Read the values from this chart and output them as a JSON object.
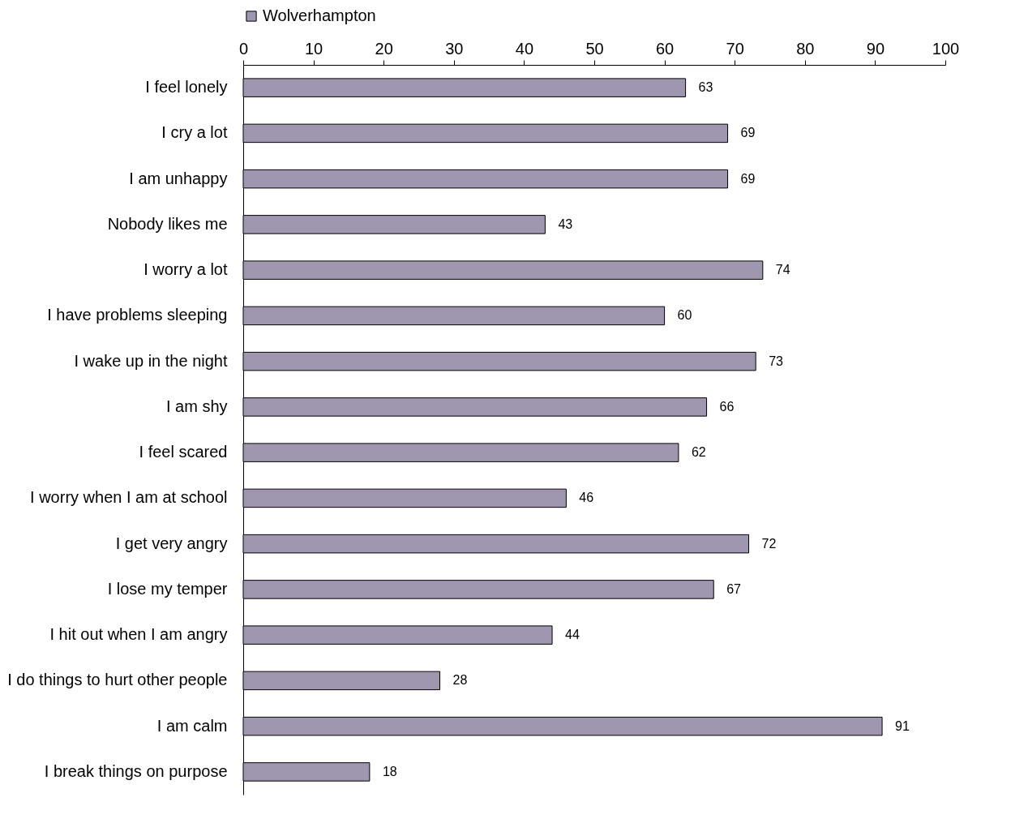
{
  "chart_data": {
    "type": "bar",
    "orientation": "horizontal",
    "categories": [
      "I feel lonely",
      "I cry a lot",
      "I am unhappy",
      "Nobody likes me",
      "I worry a lot",
      "I have problems sleeping",
      "I wake up in the night",
      "I am shy",
      "I feel scared",
      "I worry when I am at school",
      "I get very angry",
      "I lose my temper",
      "I hit out when I am angry",
      "I do things to hurt other people",
      "I am calm",
      "I break things on purpose"
    ],
    "series": [
      {
        "name": "Wolverhampton",
        "color": "#9f97b0",
        "values": [
          63,
          69,
          69,
          43,
          74,
          60,
          73,
          66,
          62,
          46,
          72,
          67,
          44,
          28,
          91,
          18
        ]
      }
    ],
    "xlim": [
      0,
      100
    ],
    "xticks": [
      0,
      10,
      20,
      30,
      40,
      50,
      60,
      70,
      80,
      90,
      100
    ],
    "data_labels": true,
    "legend": "top",
    "grid": false
  }
}
